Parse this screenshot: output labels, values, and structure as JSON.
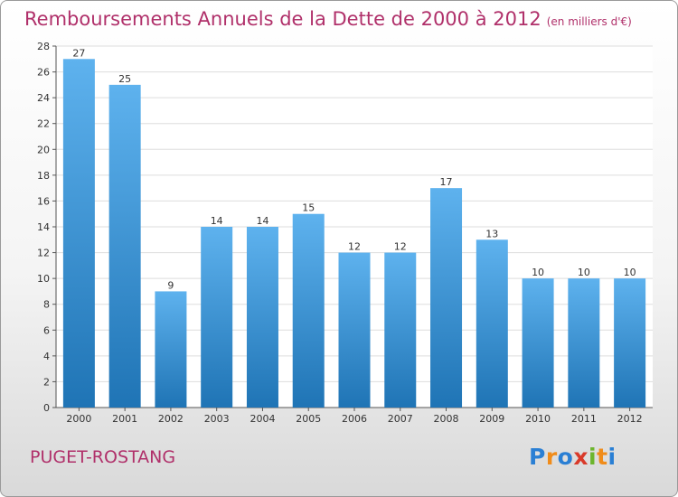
{
  "title": "Remboursements Annuels de la Dette de 2000 à 2012",
  "subtitle": "(en milliers d'€)",
  "town": "PUGET-ROSTANG",
  "logo": {
    "letters": [
      "P",
      "r",
      "o",
      "x",
      "i",
      "t",
      "i"
    ],
    "colors": [
      "#2a7fd4",
      "#f08c1a",
      "#2a7fd4",
      "#d93a2a",
      "#6cb52d",
      "#f08c1a",
      "#2a7fd4"
    ]
  },
  "colors": {
    "title": "#b0306a",
    "bar_light": "#5eb2ee",
    "bar_dark": "#1f74b5",
    "grid": "#dddddd"
  },
  "chart_data": {
    "type": "bar",
    "title": "Remboursements Annuels de la Dette de 2000 à 2012",
    "subtitle": "(en milliers d'€)",
    "xlabel": "",
    "ylabel": "",
    "categories": [
      "2000",
      "2001",
      "2002",
      "2003",
      "2004",
      "2005",
      "2006",
      "2007",
      "2008",
      "2009",
      "2010",
      "2011",
      "2012"
    ],
    "values": [
      27,
      25,
      9,
      14,
      14,
      15,
      12,
      12,
      17,
      13,
      10,
      10,
      10
    ],
    "ylim": [
      0,
      28
    ],
    "yticks": [
      0,
      2,
      4,
      6,
      8,
      10,
      12,
      14,
      16,
      18,
      20,
      22,
      24,
      26,
      28
    ],
    "grid": true
  }
}
